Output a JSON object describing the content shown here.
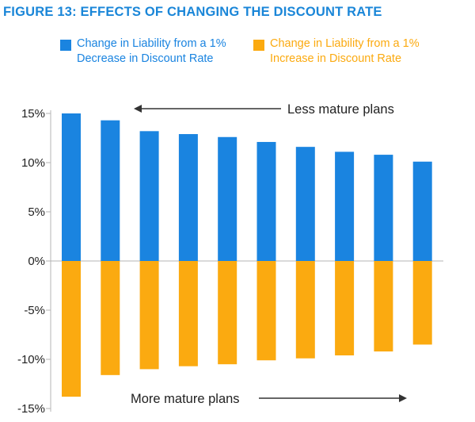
{
  "title": "FIGURE 13: EFFECTS OF CHANGING THE DISCOUNT RATE",
  "colors": {
    "decrease": "#1a84e0",
    "increase": "#fbaa10",
    "title": "#1a86d8",
    "axis": "#b5b5b5",
    "text": "#222222"
  },
  "chart_data": {
    "type": "bar",
    "categories": [
      "",
      "",
      "",
      "",
      "",
      "",
      "",
      "",
      "",
      ""
    ],
    "series": [
      {
        "name": "Change in Liability from a 1% Decrease in Discount Rate",
        "values": [
          15.0,
          14.3,
          13.2,
          12.9,
          12.6,
          12.1,
          11.6,
          11.1,
          10.8,
          10.1
        ]
      },
      {
        "name": "Change in Liability from a 1% Increase in Discount Rate",
        "values": [
          -13.8,
          -11.6,
          -11.0,
          -10.7,
          -10.5,
          -10.1,
          -9.9,
          -9.6,
          -9.2,
          -8.5
        ]
      }
    ],
    "title": "FIGURE 13: EFFECTS OF CHANGING THE DISCOUNT RATE",
    "xlabel": "",
    "ylabel": "",
    "ylim": [
      -15,
      15
    ],
    "yticks": [
      15,
      10,
      5,
      0,
      -5,
      -10,
      -15
    ],
    "ytick_labels": [
      "15%",
      "10%",
      "5%",
      "0%",
      "-5%",
      "-10%",
      "-15%"
    ],
    "grid": false,
    "legend": "top",
    "annotations": [
      {
        "text": "Less mature plans",
        "arrow": "left"
      },
      {
        "text": "More mature plans",
        "arrow": "right"
      }
    ]
  }
}
